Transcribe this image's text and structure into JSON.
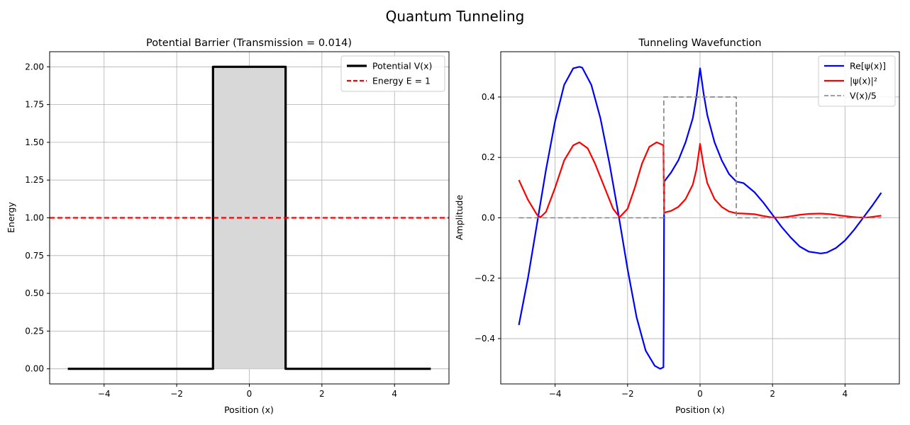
{
  "figure": {
    "suptitle": "Quantum Tunneling"
  },
  "chart_data": [
    {
      "type": "line",
      "title": "Potential Barrier (Transmission = 0.014)",
      "xlabel": "Position (x)",
      "ylabel": "Energy",
      "xlim": [
        -5.5,
        5.5
      ],
      "ylim": [
        -0.1,
        2.1
      ],
      "xticks": [
        -4,
        -2,
        0,
        2,
        4
      ],
      "xtick_labels": [
        "−4",
        "−2",
        "0",
        "2",
        "4"
      ],
      "yticks": [
        0,
        0.25,
        0.5,
        0.75,
        1.0,
        1.25,
        1.5,
        1.75,
        2.0
      ],
      "ytick_labels": [
        "0.00",
        "0.25",
        "0.50",
        "0.75",
        "1.00",
        "1.25",
        "1.50",
        "1.75",
        "2.00"
      ],
      "grid": true,
      "legend_position": "top-right",
      "series": [
        {
          "name": "Potential V(x)",
          "color": "#000000",
          "style": "solid",
          "x": [
            -5,
            -1,
            -1,
            1,
            1,
            5
          ],
          "y": [
            0,
            0,
            2,
            2,
            0,
            0
          ]
        },
        {
          "name": "Energy E = 1",
          "color": "#ff0000",
          "style": "dashed",
          "horizontal_line": 1
        }
      ],
      "fill": {
        "x_from": -1,
        "x_to": 1,
        "y_from": 0,
        "y_to": 2,
        "color": "#d8d8d8"
      }
    },
    {
      "type": "line",
      "title": "Tunneling Wavefunction",
      "xlabel": "Position (x)",
      "ylabel": "Amplitude",
      "xlim": [
        -5.5,
        5.5
      ],
      "ylim": [
        -0.55,
        0.55
      ],
      "xticks": [
        -4,
        -2,
        0,
        2,
        4
      ],
      "xtick_labels": [
        "−4",
        "−2",
        "0",
        "2",
        "4"
      ],
      "yticks": [
        -0.4,
        -0.2,
        0,
        0.2,
        0.4
      ],
      "ytick_labels": [
        "−0.4",
        "−0.2",
        "0.0",
        "0.2",
        "0.4"
      ],
      "grid": true,
      "legend_position": "top-right",
      "series": [
        {
          "name": "Re[ψ(x)]",
          "color": "#0000ff",
          "style": "solid",
          "x": [
            -5,
            -4.75,
            -4.5,
            -4.25,
            -4,
            -3.75,
            -3.5,
            -3.33,
            -3.25,
            -3,
            -2.75,
            -2.5,
            -2.25,
            -2,
            -1.75,
            -1.5,
            -1.25,
            -1.1,
            -1.01,
            -1.0,
            -0.99,
            -0.8,
            -0.6,
            -0.4,
            -0.2,
            -0.1,
            0,
            0.1,
            0.2,
            0.4,
            0.6,
            0.8,
            1.0,
            1.2,
            1.5,
            1.75,
            2.0,
            2.25,
            2.5,
            2.75,
            3.0,
            3.33,
            3.5,
            3.75,
            4.0,
            4.25,
            4.5,
            4.75,
            5.0
          ],
          "y": [
            -0.355,
            -0.2,
            -0.02,
            0.16,
            0.32,
            0.44,
            0.495,
            0.5,
            0.497,
            0.44,
            0.33,
            0.18,
            0.01,
            -0.17,
            -0.33,
            -0.44,
            -0.49,
            -0.5,
            -0.495,
            -0.25,
            0.12,
            0.15,
            0.19,
            0.25,
            0.33,
            0.4,
            0.495,
            0.41,
            0.34,
            0.25,
            0.19,
            0.145,
            0.12,
            0.115,
            0.085,
            0.05,
            0.01,
            -0.03,
            -0.065,
            -0.095,
            -0.112,
            -0.118,
            -0.115,
            -0.1,
            -0.075,
            -0.04,
            0.0,
            0.04,
            0.083
          ]
        },
        {
          "name": "|ψ(x)|²",
          "color": "#ff0000",
          "style": "solid",
          "x": [
            -5,
            -4.75,
            -4.5,
            -4.4,
            -4.25,
            -4,
            -3.75,
            -3.5,
            -3.33,
            -3.1,
            -2.9,
            -2.6,
            -2.4,
            -2.22,
            -2.0,
            -1.8,
            -1.6,
            -1.4,
            -1.2,
            -1.1,
            -1.01,
            -1.0,
            -0.99,
            -0.8,
            -0.6,
            -0.4,
            -0.2,
            -0.1,
            0,
            0.1,
            0.2,
            0.4,
            0.6,
            0.8,
            1.0,
            1.2,
            1.5,
            1.75,
            2.0,
            2.25,
            2.5,
            2.75,
            3.0,
            3.33,
            3.6,
            3.9,
            4.2,
            4.4,
            4.6,
            4.8,
            5.0
          ],
          "y": [
            0.125,
            0.06,
            0.01,
            0.002,
            0.02,
            0.1,
            0.19,
            0.24,
            0.25,
            0.23,
            0.18,
            0.09,
            0.03,
            0.002,
            0.03,
            0.1,
            0.18,
            0.235,
            0.25,
            0.245,
            0.24,
            0.1,
            0.017,
            0.023,
            0.036,
            0.062,
            0.11,
            0.16,
            0.245,
            0.17,
            0.115,
            0.062,
            0.036,
            0.021,
            0.015,
            0.014,
            0.012,
            0.006,
            0.001,
            0.001,
            0.005,
            0.01,
            0.013,
            0.014,
            0.012,
            0.007,
            0.003,
            0.001,
            0.001,
            0.004,
            0.007
          ]
        },
        {
          "name": "V(x)/5",
          "color": "#808080",
          "style": "dashed",
          "x": [
            -5,
            -1,
            -1,
            1,
            1,
            5
          ],
          "y": [
            0,
            0,
            0.4,
            0.4,
            0,
            0
          ]
        }
      ]
    }
  ]
}
